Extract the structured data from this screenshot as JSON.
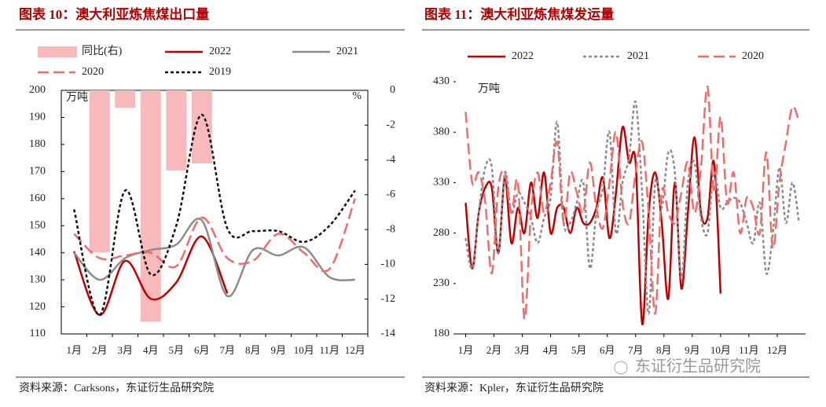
{
  "chart_data": [
    {
      "type": "combo",
      "title": "图表 10：澳大利亚炼焦煤出口量",
      "y_unit": "万吨",
      "y2_unit": "%",
      "source": "资料来源：Carksons，东证衍生品研究院",
      "categories": [
        "1月",
        "2月",
        "3月",
        "4月",
        "5月",
        "6月",
        "7月",
        "8月",
        "9月",
        "10月",
        "11月",
        "12月"
      ],
      "ylim": [
        110,
        200
      ],
      "yticks": [
        110,
        120,
        130,
        140,
        150,
        160,
        170,
        180,
        190,
        200
      ],
      "y2lim": [
        -14,
        0
      ],
      "y2ticks": [
        -14,
        -12,
        -10,
        -8,
        -6,
        -4,
        -2,
        0
      ],
      "series": [
        {
          "name": "同比(右)",
          "type": "bar",
          "axis": "y2",
          "color": "#f7b9b9",
          "values": [
            null,
            -9.3,
            -1,
            -13.3,
            -4.6,
            -4.2,
            null,
            null,
            null,
            null,
            null,
            null
          ]
        },
        {
          "name": "2022",
          "type": "line",
          "dash": "solid",
          "color": "#c00000",
          "values": [
            140.5,
            117,
            137,
            123,
            129,
            146,
            125,
            null,
            null,
            null,
            null,
            null
          ]
        },
        {
          "name": "2021",
          "type": "line",
          "dash": "solid",
          "color": "#8c8c8c",
          "values": [
            140,
            130,
            138,
            141,
            143,
            152,
            124,
            141,
            139,
            142,
            131,
            130
          ]
        },
        {
          "name": "2020",
          "type": "line",
          "dash": "longdash",
          "color": "#f06c6c",
          "values": [
            147,
            138,
            139,
            140,
            135,
            153,
            138,
            137,
            147,
            140,
            134,
            160
          ]
        },
        {
          "name": "2019",
          "type": "line",
          "dash": "dotted",
          "color": "#111111",
          "values": [
            156,
            117,
            163,
            132,
            150,
            191,
            149,
            148,
            148,
            144,
            150,
            163
          ]
        }
      ]
    },
    {
      "type": "line",
      "title": "图表 11：澳大利亚炼焦煤发运量",
      "y_unit": "万吨",
      "source": "资料来源：Kpler，东证衍生品研究院",
      "x": [
        1,
        2,
        3,
        4,
        5,
        6,
        7,
        8,
        9,
        10,
        11,
        12,
        13,
        14,
        15,
        16,
        17,
        18,
        19,
        20,
        21,
        22,
        23,
        24,
        25,
        26,
        27,
        28,
        29,
        30,
        31,
        32,
        33,
        34,
        35,
        36,
        37,
        38,
        39,
        40,
        41,
        42,
        43,
        44,
        45,
        46,
        47,
        48,
        49,
        50,
        51,
        52
      ],
      "xlim": [
        -0.5,
        53
      ],
      "xticks": [
        {
          "value": 1,
          "label": "1月"
        },
        {
          "value": 5.33,
          "label": "2月"
        },
        {
          "value": 9.67,
          "label": "3月"
        },
        {
          "value": 14,
          "label": "4月"
        },
        {
          "value": 18.33,
          "label": "5月"
        },
        {
          "value": 22.67,
          "label": "6月"
        },
        {
          "value": 27,
          "label": "7月"
        },
        {
          "value": 31.33,
          "label": "8月"
        },
        {
          "value": 35.67,
          "label": "9月"
        },
        {
          "value": 40,
          "label": "10月"
        },
        {
          "value": 44.33,
          "label": "11月"
        },
        {
          "value": 48.67,
          "label": "12月"
        }
      ],
      "ylim": [
        180,
        430
      ],
      "yticks": [
        180,
        230,
        280,
        330,
        380,
        430
      ],
      "series": [
        {
          "name": "2022",
          "dash": "solid",
          "color": "#c00000",
          "values": [
            310,
            245,
            300,
            325,
            325,
            260,
            335,
            270,
            305,
            280,
            330,
            295,
            340,
            280,
            305,
            305,
            280,
            305,
            290,
            290,
            305,
            335,
            275,
            320,
            385,
            350,
            350,
            190,
            300,
            340,
            290,
            215,
            330,
            225,
            300,
            375,
            300,
            295,
            350,
            220,
            null,
            null,
            null,
            null,
            null,
            null,
            null,
            null,
            null,
            null,
            null,
            null
          ]
        },
        {
          "name": "2021",
          "dash": "dashed",
          "color": "#8c8c8c",
          "values": [
            275,
            245,
            300,
            345,
            345,
            260,
            340,
            300,
            320,
            310,
            295,
            270,
            295,
            315,
            390,
            290,
            290,
            310,
            330,
            245,
            300,
            325,
            380,
            280,
            330,
            355,
            410,
            320,
            200,
            330,
            305,
            360,
            340,
            235,
            330,
            350,
            295,
            280,
            340,
            305,
            310,
            315,
            310,
            290,
            270,
            310,
            240,
            280,
            345,
            290,
            330,
            290
          ]
        },
        {
          "name": "2020",
          "dash": "longdash",
          "color": "#f06c6c",
          "values": [
            400,
            330,
            340,
            310,
            240,
            325,
            340,
            300,
            330,
            195,
            300,
            340,
            300,
            330,
            370,
            290,
            340,
            320,
            300,
            350,
            305,
            285,
            330,
            380,
            310,
            290,
            340,
            370,
            300,
            200,
            320,
            300,
            290,
            320,
            350,
            300,
            345,
            425,
            320,
            395,
            310,
            340,
            280,
            315,
            305,
            280,
            360,
            265,
            330,
            370,
            405,
            390
          ]
        }
      ]
    }
  ],
  "watermark": "东证衍生品研究院"
}
